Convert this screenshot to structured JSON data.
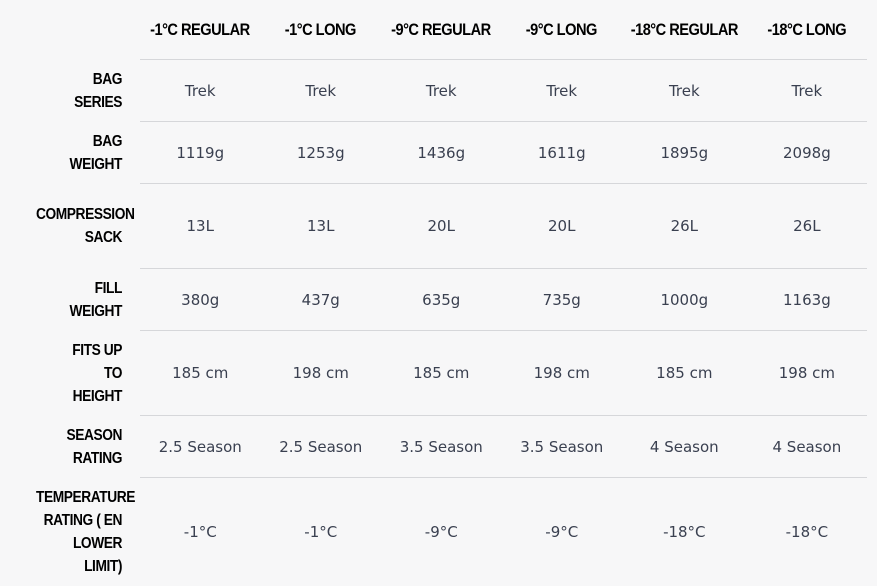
{
  "columns": [
    "-1°C REGULAR",
    "-1°C LONG",
    "-9°C REGULAR",
    "-9°C LONG",
    "-18°C REGULAR",
    "-18°C LONG"
  ],
  "rows": [
    {
      "label": "BAG SERIES",
      "values": [
        "Trek",
        "Trek",
        "Trek",
        "Trek",
        "Trek",
        "Trek"
      ]
    },
    {
      "label": "BAG WEIGHT",
      "values": [
        "1119g",
        "1253g",
        "1436g",
        "1611g",
        "1895g",
        "2098g"
      ]
    },
    {
      "label": "COMPRESSION SACK",
      "values": [
        "13L",
        "13L",
        "20L",
        "20L",
        "26L",
        "26L"
      ]
    },
    {
      "label": "FILL WEIGHT",
      "values": [
        "380g",
        "437g",
        "635g",
        "735g",
        "1000g",
        "1163g"
      ]
    },
    {
      "label": "FITS UP TO HEIGHT",
      "values": [
        "185 cm",
        "198 cm",
        "185 cm",
        "198 cm",
        "185 cm",
        "198 cm"
      ]
    },
    {
      "label": "SEASON RATING",
      "values": [
        "2.5 Season",
        "2.5 Season",
        "3.5 Season",
        "3.5 Season",
        "4 Season",
        "4 Season"
      ]
    },
    {
      "label": "TEMPERATURE RATING ( EN LOWER LIMIT)",
      "values": [
        "-1°C",
        "-1°C",
        "-9°C",
        "-9°C",
        "-18°C",
        "-18°C"
      ]
    }
  ]
}
